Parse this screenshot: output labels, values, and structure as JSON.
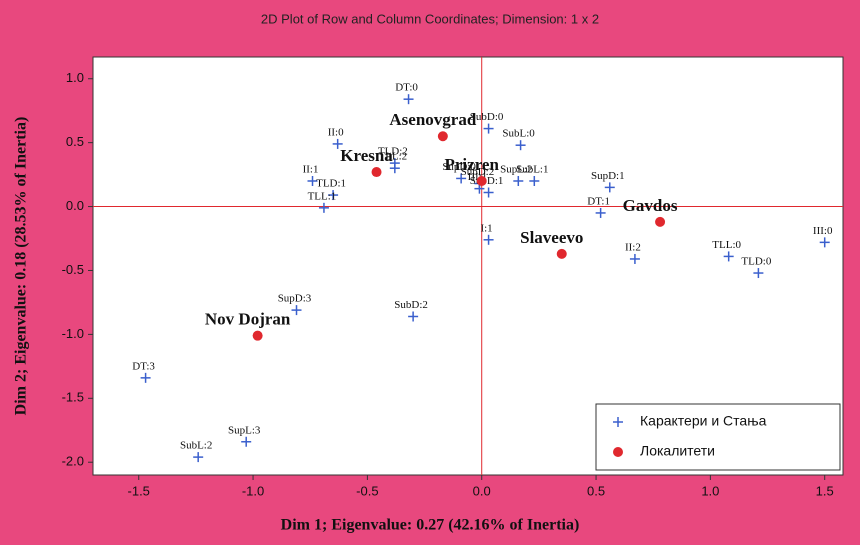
{
  "chart_data": {
    "type": "scatter",
    "title": "2D Plot of Row and Column Coordinates; Dimension: 1 x 2",
    "xlabel": "Dim 1; Eigenvalue: 0.27 (42.16% of Inertia)",
    "ylabel": "Dim 2; Eigenvalue: 0.18 (28.53% of Inertia)",
    "xlim": [
      -1.7,
      1.58
    ],
    "ylim": [
      -2.1,
      1.17
    ],
    "xticks": [
      {
        "value": -1.5,
        "label": "-1.5"
      },
      {
        "value": -1,
        "label": "-1.0"
      },
      {
        "value": -0.5,
        "label": "-0.5"
      },
      {
        "value": 0,
        "label": "0.0"
      },
      {
        "value": 0.5,
        "label": "0.5"
      },
      {
        "value": 1,
        "label": "1.0"
      },
      {
        "value": 1.5,
        "label": "1.5"
      }
    ],
    "yticks": [
      {
        "value": 1,
        "label": "1.0"
      },
      {
        "value": 0.5,
        "label": "0.5"
      },
      {
        "value": 0,
        "label": "0.0"
      },
      {
        "value": -0.5,
        "label": "-0.5"
      },
      {
        "value": -1,
        "label": "-1.0"
      },
      {
        "value": -1.5,
        "label": "-1.5"
      },
      {
        "value": -2,
        "label": "-2.0"
      }
    ],
    "legend": "lower right",
    "series": [
      {
        "name": "Карактери и Стања",
        "color": "#3a5fcd",
        "marker": "plus",
        "labels": [
          "DT:0",
          "II:0",
          "TLD:2",
          "TLL:2",
          "II:1",
          "TLD:1",
          "TLL:1",
          "SubD:0",
          "SubL:0",
          "SupD:0",
          "SupD:2",
          "SupL:2",
          "SubL:1",
          "III:1",
          "SubD:1",
          "I:1",
          "SupD:1",
          "DT:1",
          "II:2",
          "TLL:0",
          "TLD:0",
          "III:0",
          "SupD:3",
          "SubD:2",
          "DT:3",
          "SupL:3",
          "SubL:2"
        ],
        "x": [
          -0.32,
          -0.63,
          -0.38,
          -0.38,
          -0.74,
          -0.65,
          -0.69,
          0.03,
          0.17,
          -0.09,
          -0.01,
          0.16,
          0.23,
          -0.01,
          0.03,
          0.03,
          0.56,
          0.52,
          0.67,
          1.08,
          1.21,
          1.5,
          -0.81,
          -0.3,
          -1.47,
          -1.03,
          -1.24
        ],
        "y": [
          0.84,
          0.49,
          0.34,
          0.3,
          0.2,
          0.09,
          -0.01,
          0.61,
          0.48,
          0.22,
          0.18,
          0.2,
          0.2,
          0.14,
          0.11,
          -0.26,
          0.15,
          -0.05,
          -0.41,
          -0.39,
          -0.52,
          -0.28,
          -0.81,
          -0.86,
          -1.34,
          -1.84,
          -1.96
        ]
      },
      {
        "name": "Локалитети",
        "color": "#e0282e",
        "marker": "dot",
        "labels": [
          "Asenovgrad",
          "Prizren",
          "Kresna",
          "Gavdos",
          "Slaveevo",
          "Nov Dojran"
        ],
        "x": [
          -0.17,
          0.0,
          -0.46,
          0.78,
          0.35,
          -0.98
        ],
        "y": [
          0.55,
          0.2,
          0.27,
          -0.12,
          -0.37,
          -1.01
        ]
      }
    ]
  }
}
